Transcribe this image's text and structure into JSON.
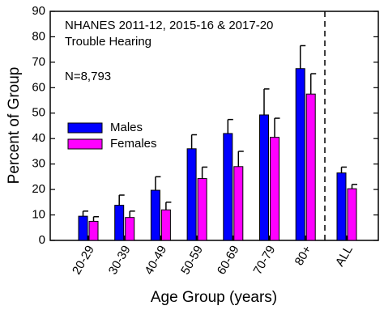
{
  "chart_data": {
    "type": "bar",
    "annotations": [
      "NHANES 2011-12, 2015-16 & 2017-20",
      "Trouble Hearing",
      "N=8,793"
    ],
    "y_label": "Percent of Group",
    "x_label": "Age Group (years)",
    "categories": [
      "20-29",
      "30-39",
      "40-49",
      "50-59",
      "60-69",
      "70-79",
      "80+",
      "ALL"
    ],
    "series": [
      {
        "name": "Males",
        "color": "#0000ff",
        "values": [
          9.5,
          13.8,
          19.7,
          36,
          42,
          49.3,
          67.5,
          26.5
        ],
        "errors": [
          2,
          4,
          5.3,
          5.5,
          5.5,
          10.2,
          9,
          2.3
        ]
      },
      {
        "name": "Females",
        "color": "#ff00ff",
        "values": [
          7.5,
          9,
          12,
          24.3,
          29,
          40.5,
          57.5,
          20.3
        ],
        "errors": [
          1.8,
          2.5,
          3,
          4.5,
          6,
          7.5,
          8,
          1.7
        ]
      }
    ],
    "ylim": [
      0,
      90
    ],
    "yticks": [
      0,
      10,
      20,
      30,
      40,
      50,
      60,
      70,
      80,
      90
    ],
    "legend": "left"
  }
}
